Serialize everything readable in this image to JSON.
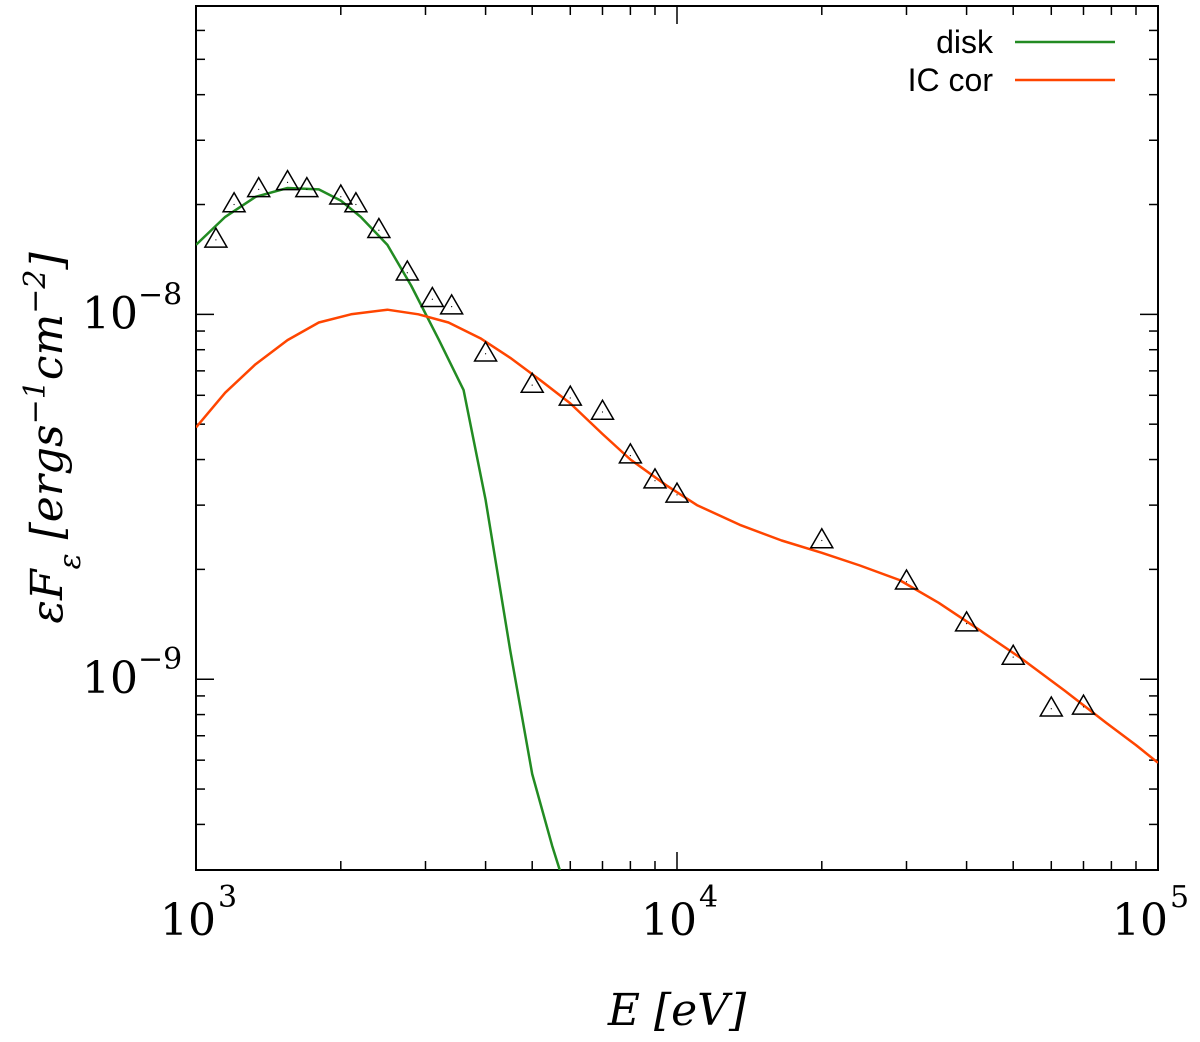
{
  "chart_data": {
    "type": "line",
    "x_scale": "log",
    "y_scale": "log",
    "xlim": [
      1000,
      100000
    ],
    "ylim": [
      3e-10,
      7e-08
    ],
    "xlabel": "E [eV]",
    "ylabel": "εF_ε [ergs^−1cm^−2]",
    "x_ticks": [
      {
        "value": 1000,
        "base": "10",
        "exp": "3"
      },
      {
        "value": 10000,
        "base": "10",
        "exp": "4"
      },
      {
        "value": 100000,
        "base": "10",
        "exp": "5"
      }
    ],
    "y_ticks": [
      {
        "value": 1e-09,
        "base": "10",
        "exp": "−9"
      },
      {
        "value": 1e-08,
        "base": "10",
        "exp": "−8"
      }
    ],
    "legend": {
      "position": "top-right"
    },
    "series": [
      {
        "name": "disk",
        "color": "#228b22",
        "x": [
          1000,
          1150,
          1330,
          1550,
          1800,
          2000,
          2200,
          2500,
          2800,
          3200,
          3600,
          4000,
          4500,
          5000,
          5500,
          5800
        ],
        "y": [
          1.55e-08,
          1.85e-08,
          2.1e-08,
          2.22e-08,
          2.2e-08,
          2.05e-08,
          1.85e-08,
          1.55e-08,
          1.2e-08,
          8.5e-09,
          6.2e-09,
          3.1e-09,
          1.2e-09,
          5.5e-10,
          3.5e-10,
          2.8e-10
        ]
      },
      {
        "name": "IC cor",
        "color": "#ff4500",
        "x": [
          1000,
          1150,
          1330,
          1550,
          1800,
          2100,
          2500,
          2900,
          3350,
          3900,
          4500,
          5200,
          6000,
          7000,
          8000,
          9500,
          11000,
          13500,
          16500,
          20000,
          24000,
          29000,
          35000,
          42000,
          52000,
          64000,
          78000,
          90000,
          100000
        ],
        "y": [
          4.9e-09,
          6.1e-09,
          7.3e-09,
          8.5e-09,
          9.5e-09,
          1e-08,
          1.03e-08,
          1e-08,
          9.5e-09,
          8.6e-09,
          7.6e-09,
          6.6e-09,
          5.7e-09,
          4.7e-09,
          4e-09,
          3.4e-09,
          3e-09,
          2.65e-09,
          2.4e-09,
          2.22e-09,
          2.05e-09,
          1.87e-09,
          1.62e-09,
          1.38e-09,
          1.14e-09,
          9.3e-10,
          7.6e-10,
          6.6e-10,
          5.9e-10
        ]
      },
      {
        "name": "",
        "marker": "triangle",
        "color": "#000000",
        "x": [
          1100,
          1200,
          1350,
          1550,
          1700,
          2000,
          2150,
          2400,
          2750,
          3100,
          3400,
          4000,
          5000,
          6000,
          7000,
          8000,
          9000,
          10000,
          20000,
          30000,
          40000,
          50000,
          60000,
          70000
        ],
        "y": [
          1.6e-08,
          2e-08,
          2.2e-08,
          2.3e-08,
          2.2e-08,
          2.1e-08,
          2e-08,
          1.7e-08,
          1.3e-08,
          1.1e-08,
          1.05e-08,
          7.8e-09,
          6.4e-09,
          5.9e-09,
          5.4e-09,
          4.1e-09,
          3.5e-09,
          3.2e-09,
          2.4e-09,
          1.85e-09,
          1.42e-09,
          1.15e-09,
          8.3e-10,
          8.4e-10
        ]
      }
    ]
  }
}
